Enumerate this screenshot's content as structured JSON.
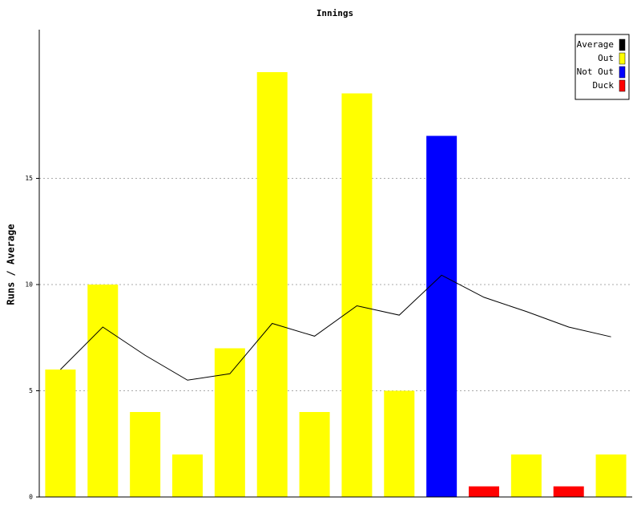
{
  "chart_data": {
    "type": "bar",
    "title": "Innings",
    "y_label": "Runs / Average",
    "categories": [
      null,
      null,
      null,
      null,
      null,
      null,
      null,
      null,
      null,
      null,
      null,
      null,
      null,
      null
    ],
    "series": [
      {
        "name": "Average",
        "type": "line",
        "color": "#000000",
        "values": [
          6,
          8,
          6.67,
          5.5,
          5.8,
          8.17,
          7.57,
          9.0,
          8.56,
          10.44,
          9.4,
          8.73,
          8,
          7.54
        ]
      },
      {
        "name": "Out",
        "type": "bar",
        "color": "#ffff00",
        "values": [
          6,
          10,
          4,
          2,
          7,
          20,
          4,
          19,
          5,
          null,
          null,
          2,
          null,
          2
        ]
      },
      {
        "name": "Not Out",
        "type": "bar",
        "color": "#0000ff",
        "values": [
          null,
          null,
          null,
          null,
          null,
          null,
          null,
          null,
          null,
          17,
          null,
          null,
          null,
          null
        ]
      },
      {
        "name": "Duck",
        "type": "bar",
        "color": "#ff0000",
        "values": [
          null,
          null,
          null,
          null,
          null,
          null,
          null,
          null,
          null,
          null,
          0.5,
          null,
          0.5,
          null
        ]
      }
    ],
    "ylim": [
      0,
      22
    ],
    "yticks": [
      0,
      5,
      10,
      15
    ],
    "grid": true,
    "legend": "top-right"
  }
}
